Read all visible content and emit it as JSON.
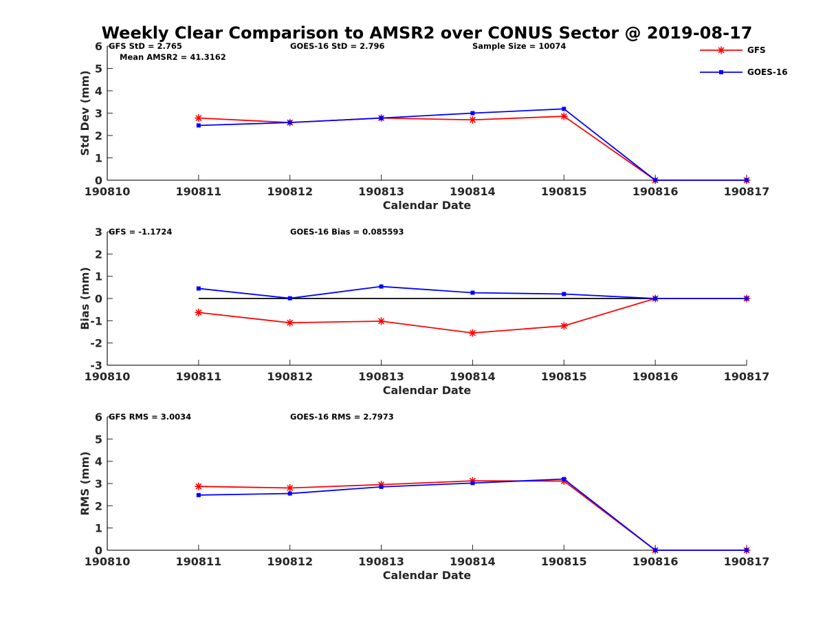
{
  "chart_data": {
    "title": "Weekly Clear Comparison to AMSR2 over CONUS Sector @ 2019-08-17",
    "type": "line",
    "categories": [
      "190810",
      "190811",
      "190812",
      "190813",
      "190814",
      "190815",
      "190816",
      "190817"
    ],
    "legend": {
      "placement": "top-right",
      "entries": [
        {
          "name": "GFS",
          "color": "#ff0000",
          "marker": "asterisk"
        },
        {
          "name": "GOES-16",
          "color": "#0000ff",
          "marker": "square"
        }
      ]
    },
    "panels": [
      {
        "id": "std",
        "ylabel": "Std Dev (mm)",
        "xlabel": "Calendar Date",
        "ylim": [
          0,
          6
        ],
        "yticks": [
          0,
          1,
          2,
          3,
          4,
          5,
          6
        ],
        "annotations": {
          "gfs": "GFS StD = 2.765",
          "goes": "GOES-16 StD = 2.796",
          "sample": "Sample Size = 10074",
          "mean": "Mean AMSR2 = 41.3162"
        },
        "zero_line": false,
        "series": [
          {
            "name": "GFS",
            "x": [
              1,
              2,
              3,
              4,
              5,
              6,
              7
            ],
            "values": [
              2.78,
              2.58,
              2.78,
              2.7,
              2.86,
              0.0,
              0.0
            ]
          },
          {
            "name": "GOES-16",
            "x": [
              1,
              2,
              3,
              4,
              5,
              6,
              7
            ],
            "values": [
              2.45,
              2.58,
              2.78,
              3.0,
              3.19,
              0.0,
              0.0
            ]
          }
        ]
      },
      {
        "id": "bias",
        "ylabel": "Bias (mm)",
        "xlabel": "Calendar Date",
        "ylim": [
          -3,
          3
        ],
        "yticks": [
          -3,
          -2,
          -1,
          0,
          1,
          2,
          3
        ],
        "annotations": {
          "gfs": "GFS = -1.1724",
          "goes": "GOES-16 Bias  = 0.085593"
        },
        "zero_line": true,
        "series": [
          {
            "name": "GFS",
            "x": [
              1,
              2,
              3,
              4,
              5,
              6,
              7
            ],
            "values": [
              -0.63,
              -1.09,
              -1.02,
              -1.55,
              -1.23,
              0.0,
              0.0
            ]
          },
          {
            "name": "GOES-16",
            "x": [
              1,
              2,
              3,
              4,
              5,
              6,
              7
            ],
            "values": [
              0.45,
              0.01,
              0.54,
              0.26,
              0.2,
              0.0,
              0.0
            ]
          }
        ]
      },
      {
        "id": "rms",
        "ylabel": "RMS (mm)",
        "xlabel": "Calendar Date",
        "ylim": [
          0,
          6
        ],
        "yticks": [
          0,
          1,
          2,
          3,
          4,
          5,
          6
        ],
        "annotations": {
          "gfs": "GFS RMS = 3.0034",
          "goes": "GOES-16 RMS = 2.7973"
        },
        "zero_line": false,
        "series": [
          {
            "name": "GFS",
            "x": [
              1,
              2,
              3,
              4,
              5,
              6,
              7
            ],
            "values": [
              2.87,
              2.8,
              2.95,
              3.12,
              3.11,
              0.0,
              0.0
            ]
          },
          {
            "name": "GOES-16",
            "x": [
              1,
              2,
              3,
              4,
              5,
              6,
              7
            ],
            "values": [
              2.48,
              2.55,
              2.85,
              3.02,
              3.2,
              0.0,
              0.0
            ]
          }
        ]
      }
    ]
  }
}
